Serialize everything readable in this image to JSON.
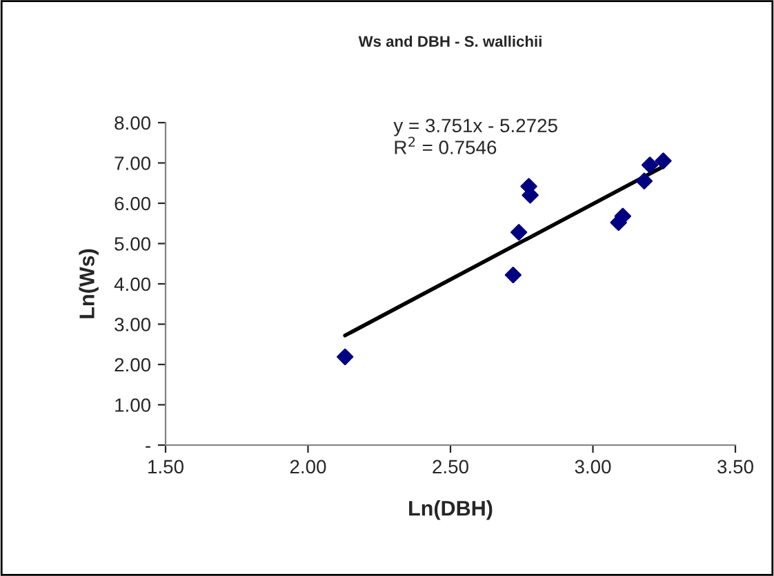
{
  "chart_data": {
    "type": "scatter",
    "title": "Ws and DBH - S. wallichii",
    "xlabel": "Ln(DBH)",
    "ylabel": "Ln(Ws)",
    "series": [
      {
        "color": "#000080",
        "marker": "diamond",
        "x": [
          2.13,
          2.72,
          2.74,
          2.775,
          2.78,
          3.09,
          3.105,
          3.18,
          3.2,
          3.247
        ],
        "values": [
          2.19,
          4.22,
          5.28,
          6.42,
          6.2,
          5.52,
          5.68,
          6.55,
          6.95,
          7.05
        ]
      },
      {
        "type": "line",
        "color": "#000000",
        "x": [
          2.13,
          3.247
        ],
        "values": [
          2.72,
          6.91
        ]
      }
    ],
    "xlim": [
      1.5,
      3.5
    ],
    "xticks": [
      {
        "value": 1.5,
        "label": "1.50"
      },
      {
        "value": 2.0,
        "label": "2.00"
      },
      {
        "value": 2.5,
        "label": "2.50"
      },
      {
        "value": 3.0,
        "label": "3.00"
      },
      {
        "value": 3.5,
        "label": "3.50"
      }
    ],
    "ylim": [
      0,
      8
    ],
    "yticks": [
      {
        "value": 0,
        "label": "-"
      },
      {
        "value": 1,
        "label": "1.00"
      },
      {
        "value": 2,
        "label": "2.00"
      },
      {
        "value": 3,
        "label": "3.00"
      },
      {
        "value": 4,
        "label": "4.00"
      },
      {
        "value": 5,
        "label": "5.00"
      },
      {
        "value": 6,
        "label": "6.00"
      },
      {
        "value": 7,
        "label": "7.00"
      },
      {
        "value": 8,
        "label": "8.00"
      }
    ],
    "grid": false,
    "annotations": [
      "y = 3.751x - 5.2725\nR$^{2}$ = 0.7546"
    ]
  }
}
